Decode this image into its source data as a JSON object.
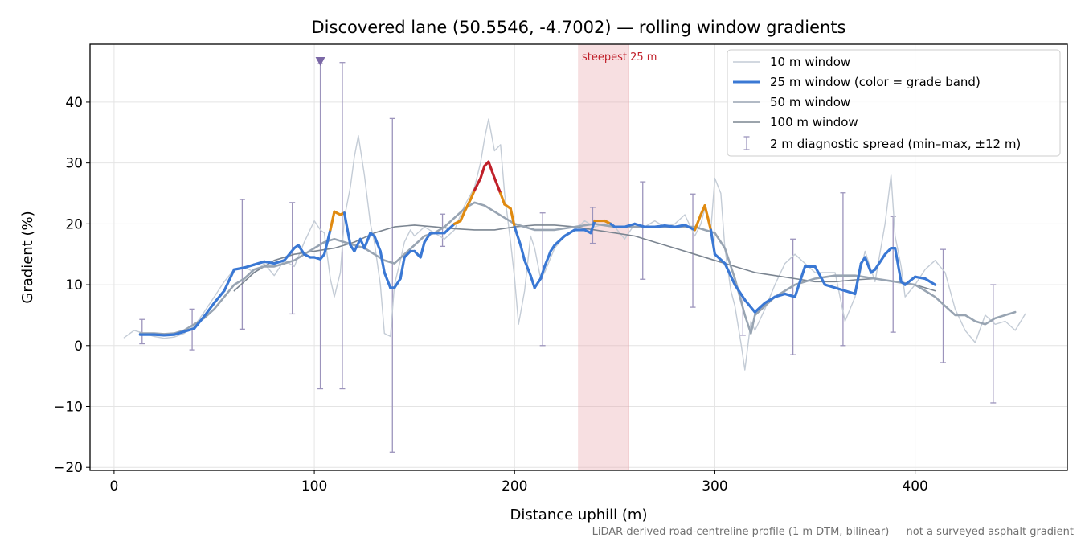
{
  "chart_data": {
    "type": "line",
    "title": "Discovered lane (50.5546, -4.7002) — rolling window gradients",
    "xlabel": "Distance uphill (m)",
    "ylabel": "Gradient (%)",
    "footnote": "LiDAR-derived road-centreline profile (1 m DTM, bilinear) — not a surveyed asphalt gradient",
    "xlim": [
      -12,
      476
    ],
    "ylim": [
      -20.5,
      49.5
    ],
    "xticks": [
      0,
      100,
      200,
      300,
      400
    ],
    "yticks": [
      -20,
      -10,
      0,
      10,
      20,
      30,
      40
    ],
    "xtick_labels": [
      "0",
      "100",
      "200",
      "300",
      "400"
    ],
    "ytick_labels": [
      "−20",
      "−10",
      "0",
      "10",
      "20",
      "30",
      "40"
    ],
    "grid": true,
    "legend_position": "upper right",
    "colors": {
      "w10": "#c4ccd6",
      "band_low": "#3a78d4",
      "band_mid": "#e08a10",
      "band_high": "#c0202a",
      "w50": "#98a4b2",
      "w100": "#7b8591",
      "errorbar": "#9c94bc",
      "marker": "#7b68a6",
      "highlight": "#e8a4a8",
      "highlight_text": "#c0202a"
    },
    "grade_band_thresholds": [
      20,
      25
    ],
    "highlight": {
      "x0": 232,
      "x1": 257,
      "label": "steepest 25 m"
    },
    "marker": {
      "x": 103,
      "y": 46.6,
      "symbol": "triangle-down"
    },
    "series": [
      {
        "name": "10 m window",
        "key": "w10",
        "x": [
          5,
          10,
          15,
          20,
          25,
          30,
          35,
          40,
          45,
          50,
          55,
          60,
          65,
          70,
          75,
          80,
          85,
          90,
          95,
          100,
          103,
          105,
          108,
          110,
          113,
          115,
          118,
          120,
          122,
          125,
          128,
          130,
          133,
          135,
          138,
          140,
          143,
          145,
          148,
          150,
          155,
          160,
          165,
          170,
          175,
          180,
          183,
          185,
          187,
          190,
          193,
          195,
          198,
          200,
          202,
          205,
          208,
          210,
          213,
          215,
          220,
          225,
          230,
          235,
          240,
          245,
          250,
          255,
          260,
          265,
          270,
          275,
          280,
          285,
          290,
          293,
          295,
          298,
          300,
          303,
          305,
          308,
          310,
          313,
          315,
          318,
          320,
          325,
          330,
          335,
          340,
          345,
          350,
          355,
          360,
          365,
          370,
          375,
          380,
          385,
          388,
          390,
          393,
          395,
          400,
          405,
          410,
          415,
          420,
          425,
          430,
          435,
          440,
          445,
          450,
          455
        ],
        "y": [
          1.3,
          2.5,
          2.0,
          1.5,
          1.2,
          1.4,
          2.0,
          3.2,
          5.5,
          8.0,
          10.5,
          12.5,
          13.0,
          12.0,
          13.5,
          11.5,
          14.0,
          13.0,
          17.0,
          20.5,
          19.0,
          18.5,
          11.0,
          8.0,
          12.0,
          21.0,
          26.0,
          31.0,
          34.5,
          28.0,
          20.0,
          17.0,
          10.0,
          2.0,
          1.5,
          10.0,
          14.0,
          17.0,
          19.0,
          18.0,
          19.5,
          18.5,
          17.5,
          19.0,
          23.0,
          26.0,
          30.0,
          34.0,
          37.2,
          32.0,
          33.0,
          25.0,
          17.0,
          11.0,
          3.5,
          9.0,
          18.0,
          16.0,
          11.0,
          12.0,
          16.0,
          18.0,
          19.0,
          20.5,
          19.5,
          20.0,
          19.5,
          17.5,
          20.0,
          19.5,
          20.5,
          19.5,
          20.0,
          21.5,
          18.0,
          20.0,
          22.5,
          19.0,
          27.5,
          25.0,
          16.0,
          9.0,
          6.5,
          0.5,
          -4.0,
          4.0,
          2.5,
          6.0,
          10.0,
          13.5,
          15.0,
          13.5,
          12.0,
          12.0,
          12.0,
          4.0,
          8.0,
          15.5,
          10.5,
          20.0,
          28.0,
          18.0,
          13.0,
          8.0,
          10.0,
          12.5,
          14.0,
          12.0,
          6.0,
          2.5,
          0.5,
          5.0,
          3.5,
          4.0,
          2.5,
          5.2
        ]
      },
      {
        "name": "25 m window (color = grade band)",
        "key": "w25",
        "x": [
          13,
          20,
          25,
          30,
          35,
          40,
          45,
          50,
          55,
          60,
          65,
          70,
          75,
          80,
          85,
          90,
          92,
          95,
          98,
          100,
          103,
          105,
          108,
          110,
          113,
          115,
          118,
          120,
          123,
          125,
          128,
          130,
          133,
          135,
          138,
          140,
          143,
          145,
          148,
          150,
          153,
          155,
          158,
          160,
          165,
          170,
          173,
          175,
          178,
          180,
          183,
          185,
          187,
          190,
          193,
          195,
          198,
          200,
          203,
          205,
          208,
          210,
          213,
          215,
          218,
          220,
          225,
          230,
          235,
          238,
          240,
          245,
          248,
          250,
          255,
          260,
          265,
          270,
          275,
          280,
          285,
          290,
          293,
          295,
          298,
          300,
          305,
          310,
          315,
          320,
          325,
          330,
          335,
          340,
          345,
          350,
          355,
          360,
          365,
          370,
          373,
          375,
          378,
          380,
          385,
          388,
          390,
          393,
          395,
          400,
          405,
          410
        ],
        "y": [
          1.8,
          1.8,
          1.7,
          1.8,
          2.3,
          2.8,
          4.8,
          7.0,
          9.0,
          12.5,
          12.8,
          13.3,
          13.8,
          13.5,
          14.0,
          16.0,
          16.5,
          15.0,
          14.5,
          14.5,
          14.2,
          15.0,
          19.0,
          22.0,
          21.5,
          21.8,
          16.5,
          15.5,
          17.5,
          16.0,
          18.5,
          18.0,
          15.5,
          12.0,
          9.5,
          9.5,
          11.0,
          14.5,
          15.5,
          15.5,
          14.5,
          17.0,
          18.5,
          18.5,
          18.5,
          20.0,
          20.5,
          22.0,
          24.0,
          25.5,
          27.5,
          29.5,
          30.2,
          27.5,
          25.0,
          23.2,
          22.5,
          19.5,
          16.5,
          14.0,
          11.5,
          9.5,
          11.0,
          13.0,
          15.5,
          16.5,
          18.0,
          19.0,
          19.0,
          18.5,
          20.5,
          20.5,
          20.0,
          19.5,
          19.5,
          20.0,
          19.5,
          19.5,
          19.7,
          19.5,
          19.8,
          19.0,
          21.5,
          23.0,
          19.0,
          15.0,
          13.5,
          10.0,
          7.5,
          5.5,
          7.0,
          8.0,
          8.5,
          8.0,
          13.0,
          13.0,
          10.0,
          9.5,
          9.0,
          8.5,
          13.5,
          14.5,
          12.0,
          12.5,
          15.0,
          16.0,
          16.0,
          10.5,
          10.0,
          11.3,
          11.0,
          10.0
        ]
      },
      {
        "name": "50 m window",
        "key": "w50",
        "x": [
          13,
          20,
          25,
          30,
          35,
          40,
          45,
          50,
          55,
          60,
          65,
          70,
          75,
          80,
          85,
          90,
          95,
          100,
          105,
          110,
          115,
          120,
          125,
          130,
          135,
          140,
          145,
          150,
          155,
          160,
          165,
          170,
          175,
          180,
          185,
          190,
          195,
          200,
          205,
          210,
          220,
          230,
          240,
          250,
          260,
          270,
          280,
          290,
          300,
          305,
          310,
          315,
          318,
          320,
          325,
          330,
          335,
          340,
          350,
          360,
          370,
          380,
          390,
          400,
          405,
          410,
          415,
          420,
          425,
          430,
          435,
          440,
          445,
          450
        ],
        "y": [
          2.0,
          2.0,
          1.9,
          2.0,
          2.5,
          3.5,
          4.5,
          6.0,
          8.0,
          10.0,
          11.0,
          12.5,
          13.0,
          13.0,
          13.5,
          14.0,
          15.0,
          16.0,
          17.0,
          17.5,
          17.0,
          16.5,
          16.0,
          15.0,
          14.0,
          13.5,
          15.0,
          16.5,
          18.0,
          18.5,
          19.5,
          21.0,
          22.5,
          23.5,
          23.0,
          22.0,
          21.0,
          20.0,
          19.5,
          19.0,
          19.0,
          19.5,
          20.0,
          19.5,
          19.5,
          19.5,
          19.5,
          19.5,
          18.5,
          16.0,
          11.0,
          5.0,
          2.0,
          5.0,
          6.5,
          8.0,
          9.0,
          10.0,
          11.0,
          11.5,
          11.5,
          11.0,
          10.5,
          10.0,
          9.0,
          8.0,
          6.5,
          5.0,
          5.0,
          4.0,
          3.5,
          4.5,
          5.0,
          5.5
        ]
      },
      {
        "name": "100 m window",
        "key": "w100",
        "x": [
          60,
          70,
          80,
          90,
          100,
          110,
          120,
          130,
          140,
          150,
          160,
          170,
          180,
          190,
          200,
          210,
          220,
          230,
          240,
          250,
          260,
          270,
          280,
          290,
          300,
          310,
          320,
          330,
          340,
          350,
          360,
          370,
          380,
          390,
          400,
          410
        ],
        "y": [
          9.0,
          12.0,
          14.0,
          15.0,
          15.5,
          16.0,
          17.0,
          18.5,
          19.5,
          19.8,
          19.5,
          19.2,
          19.0,
          19.0,
          19.5,
          19.8,
          19.8,
          19.5,
          19.0,
          18.5,
          18.0,
          17.0,
          16.0,
          15.0,
          14.0,
          13.0,
          12.0,
          11.5,
          11.0,
          10.5,
          10.5,
          10.8,
          11.0,
          10.5,
          10.0,
          9.0
        ]
      }
    ],
    "errorbars": {
      "name": "2 m diagnostic spread (min–max, ±12 m)",
      "x": [
        14,
        39,
        64,
        89,
        103,
        114,
        139,
        164,
        214,
        239,
        264,
        289,
        314,
        339,
        364,
        389,
        414,
        439
      ],
      "low": [
        0.3,
        -0.7,
        2.7,
        5.2,
        -7.1,
        -7.1,
        -17.5,
        16.3,
        0.0,
        16.8,
        10.9,
        6.3,
        1.7,
        -1.5,
        0.0,
        2.2,
        -2.8,
        -9.4
      ],
      "high": [
        4.3,
        6.0,
        24.0,
        23.5,
        46.3,
        46.5,
        37.3,
        21.6,
        21.8,
        22.7,
        26.9,
        24.9,
        7.8,
        17.5,
        25.1,
        21.2,
        15.8,
        10.0
      ]
    }
  }
}
